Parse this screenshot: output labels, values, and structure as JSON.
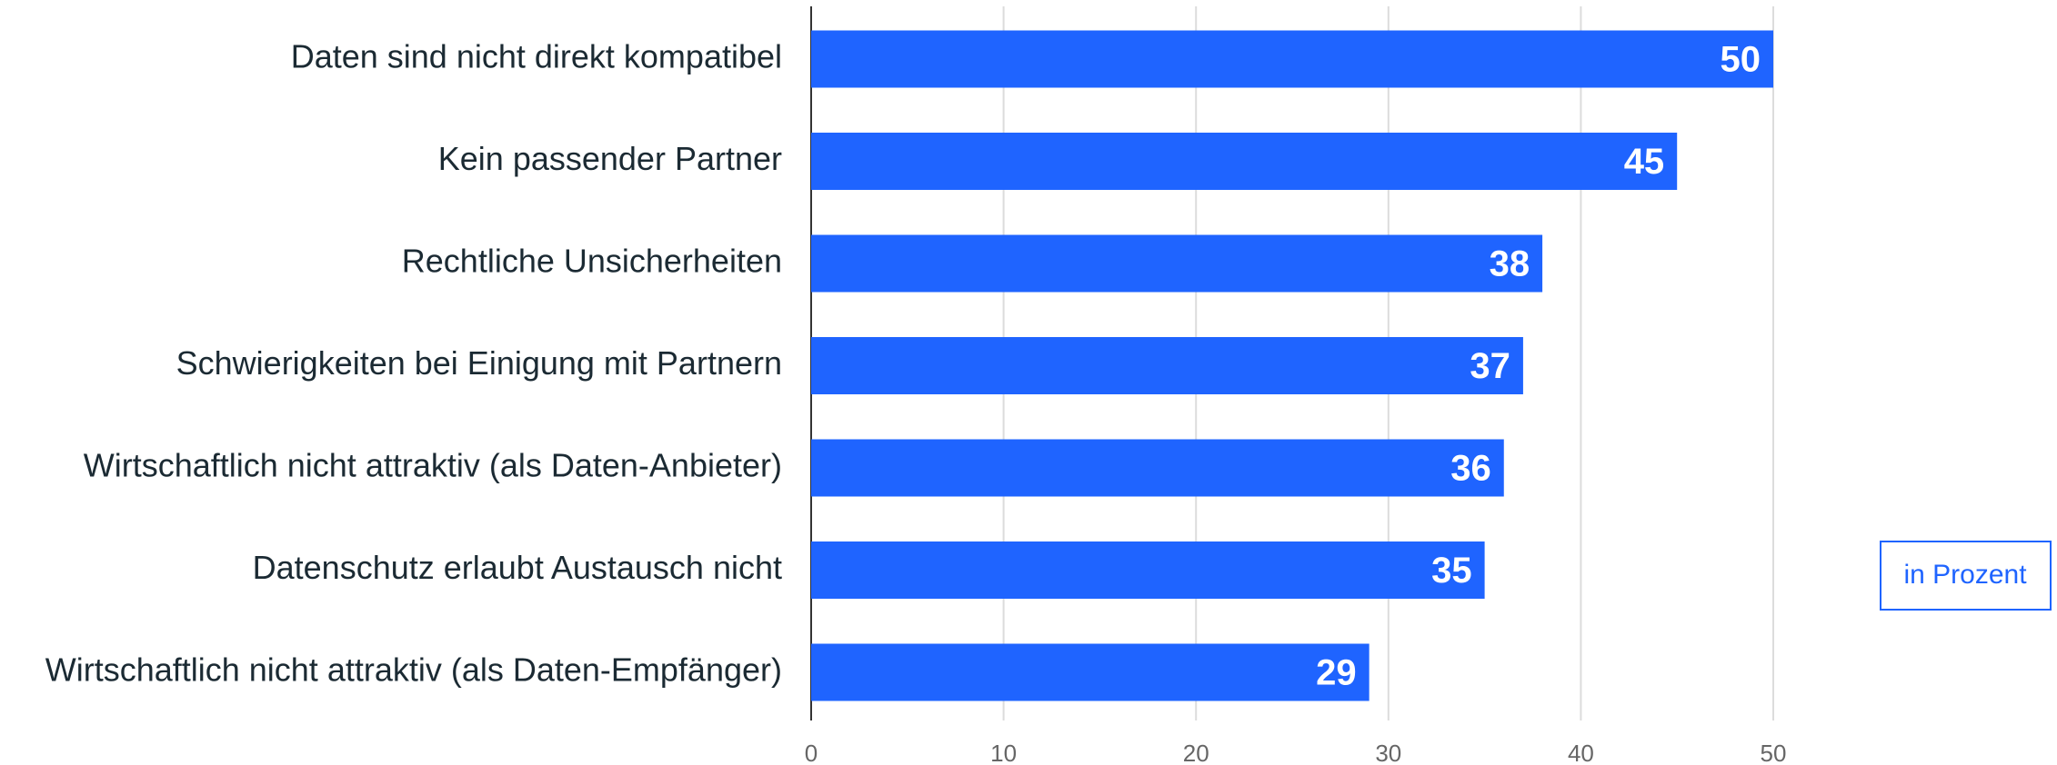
{
  "chart_data": {
    "type": "bar",
    "orientation": "horizontal",
    "categories": [
      "Daten sind nicht direkt kompatibel",
      "Kein passender Partner",
      "Rechtliche Unsicherheiten",
      "Schwierigkeiten bei Einigung mit Partnern",
      "Wirtschaftlich nicht attraktiv (als Daten-Anbieter)",
      "Datenschutz erlaubt Austausch nicht",
      "Wirtschaftlich nicht attraktiv (als Daten-Empfänger)"
    ],
    "values": [
      50,
      45,
      38,
      37,
      36,
      35,
      29
    ],
    "color": "#1f64ff",
    "xlim": [
      0,
      50
    ],
    "xticks": [
      0,
      10,
      20,
      30,
      40,
      50
    ],
    "grid": true,
    "unit_label": "in Prozent"
  }
}
